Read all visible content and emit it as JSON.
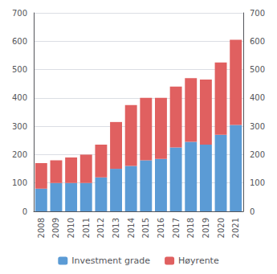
{
  "chart_data": {
    "type": "bar",
    "stacked": true,
    "categories": [
      "2008",
      "2009",
      "2010",
      "2011",
      "2012",
      "2013",
      "2014",
      "2015",
      "2016",
      "2017",
      "2018",
      "2019",
      "2020",
      "2021"
    ],
    "series": [
      {
        "name": "Investment grade",
        "color": "#5b9bd5",
        "values": [
          80,
          100,
          100,
          100,
          120,
          150,
          160,
          180,
          185,
          225,
          245,
          235,
          270,
          305
        ]
      },
      {
        "name": "Høyrente",
        "color": "#e06060",
        "values": [
          90,
          80,
          90,
          100,
          115,
          165,
          215,
          220,
          215,
          215,
          225,
          230,
          255,
          300
        ]
      }
    ],
    "ylim": [
      0,
      700
    ],
    "yticks": [
      0,
      100,
      200,
      300,
      400,
      500,
      600,
      700
    ],
    "y2lim": [
      0,
      700
    ],
    "y2ticks": [
      0,
      100,
      200,
      300,
      400,
      500,
      600,
      700
    ],
    "grid": true,
    "legend": "bottom"
  }
}
